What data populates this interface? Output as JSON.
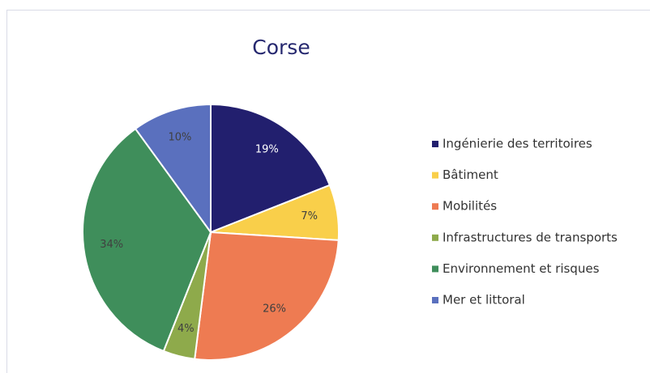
{
  "chart_data": {
    "type": "pie",
    "title": "Corse",
    "categories": [
      "Ingénierie des territoires",
      "Bâtiment",
      "Mobilités",
      "Infrastructures de transports",
      "Environnement et risques",
      "Mer et littoral"
    ],
    "values": [
      19,
      7,
      26,
      4,
      34,
      10
    ],
    "value_labels": [
      "19%",
      "7%",
      "26%",
      "4%",
      "34%",
      "10%"
    ],
    "colors": [
      "#221f6e",
      "#f9cf4a",
      "#ee7b52",
      "#8eaa4b",
      "#3f8e5b",
      "#5a70be"
    ],
    "legend": "right"
  }
}
